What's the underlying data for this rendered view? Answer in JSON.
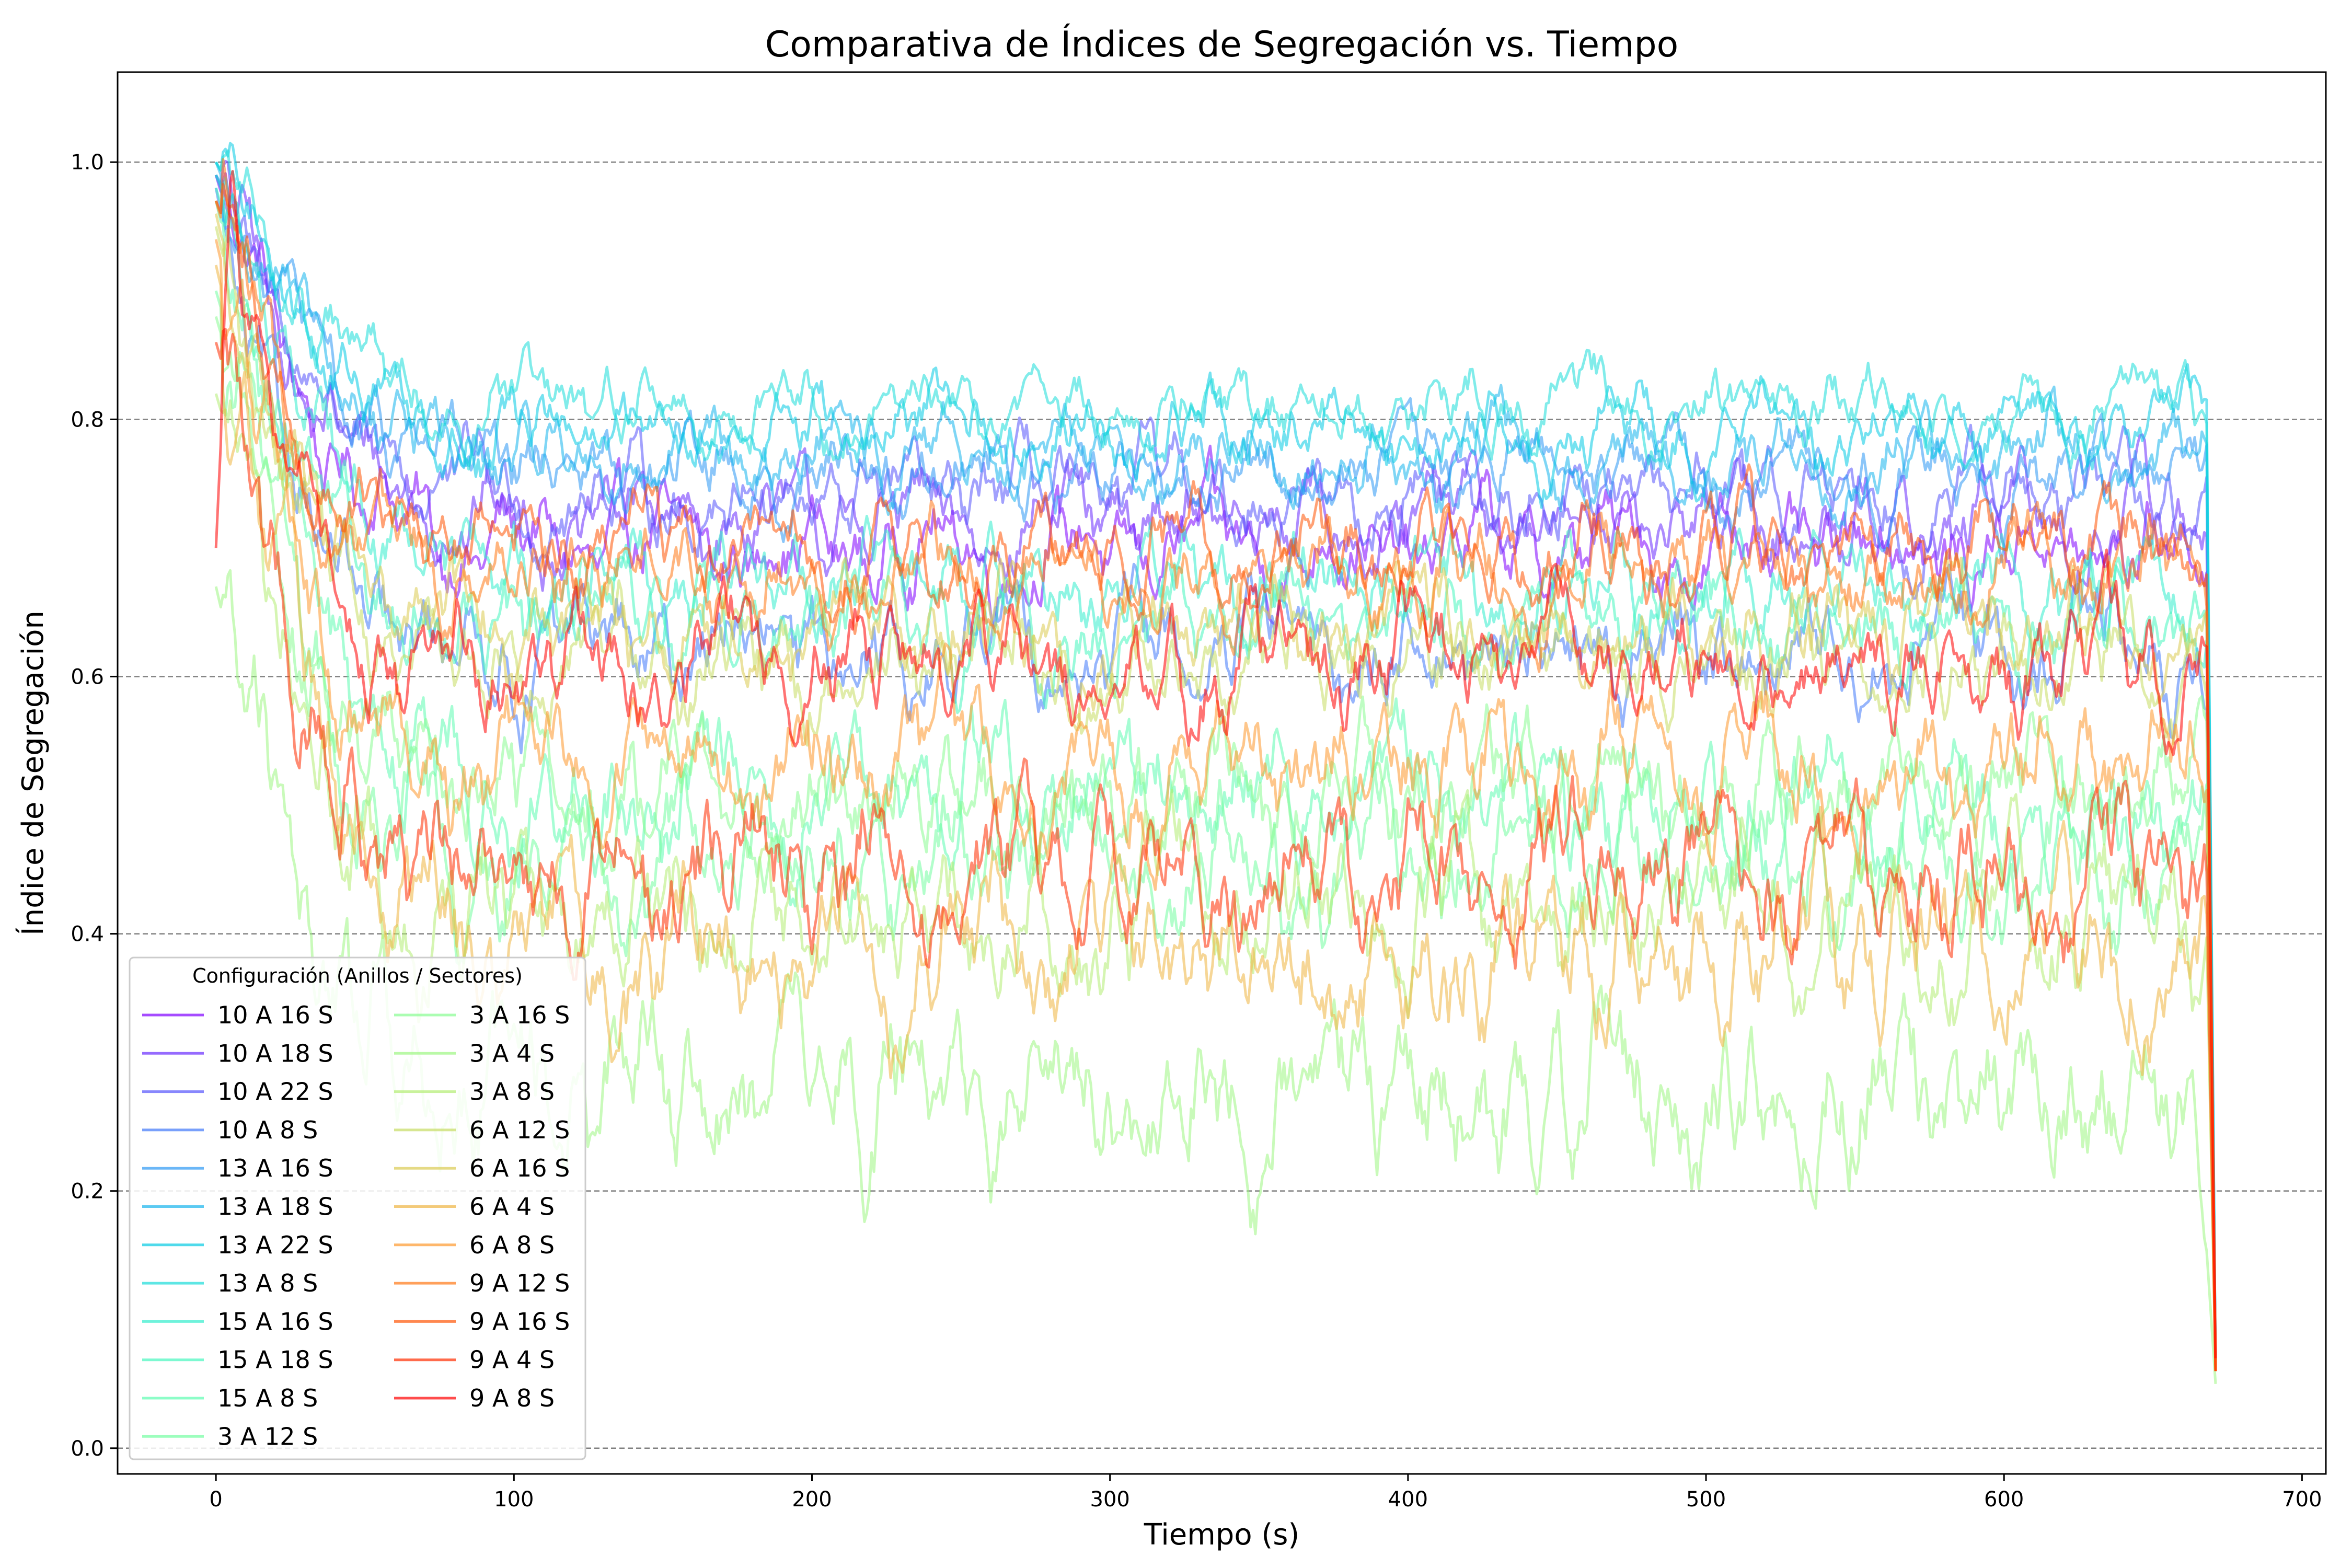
{
  "chart_data": {
    "type": "line",
    "title": "Comparativa de Índices de Segregación vs. Tiempo",
    "xlabel": "Tiempo (s)",
    "ylabel": "Índice de Segregación",
    "xlim": [
      -33,
      708
    ],
    "ylim": [
      -0.02,
      1.07
    ],
    "xticks": [
      0,
      100,
      200,
      300,
      400,
      500,
      600,
      700
    ],
    "yticks": [
      0.0,
      0.2,
      0.4,
      0.6,
      0.8,
      1.0
    ],
    "x_tick_labels": [
      "0",
      "100",
      "200",
      "300",
      "400",
      "500",
      "600",
      "700"
    ],
    "y_tick_labels": [
      "0.0",
      "0.2",
      "0.4",
      "0.6",
      "0.8",
      "1.0"
    ],
    "grid": "horizontal dashed",
    "legend_title": "Configuración (Anillos / Sectores)",
    "legend_position": "lower-left",
    "x": [
      0,
      5,
      10,
      20,
      30,
      40,
      50,
      60,
      80,
      100,
      150,
      200,
      250,
      300,
      350,
      400,
      450,
      500,
      550,
      600,
      650,
      665,
      668,
      671
    ],
    "series": [
      {
        "name": "10 A 16 S",
        "color": "#8000ff",
        "values": [
          0.99,
          0.95,
          0.93,
          0.87,
          0.82,
          0.77,
          0.74,
          0.73,
          0.71,
          0.7,
          0.7,
          0.7,
          0.7,
          0.7,
          0.7,
          0.7,
          0.7,
          0.7,
          0.7,
          0.7,
          0.7,
          0.7,
          0.7,
          0.06
        ]
      },
      {
        "name": "10 A 18 S",
        "color": "#6a2cfe",
        "values": [
          0.99,
          0.96,
          0.94,
          0.88,
          0.83,
          0.79,
          0.76,
          0.75,
          0.73,
          0.72,
          0.72,
          0.72,
          0.72,
          0.72,
          0.72,
          0.72,
          0.72,
          0.72,
          0.72,
          0.72,
          0.72,
          0.72,
          0.72,
          0.06
        ]
      },
      {
        "name": "10 A 22 S",
        "color": "#5654fc",
        "values": [
          0.99,
          0.96,
          0.94,
          0.89,
          0.84,
          0.8,
          0.77,
          0.76,
          0.75,
          0.74,
          0.74,
          0.74,
          0.74,
          0.74,
          0.74,
          0.74,
          0.74,
          0.74,
          0.74,
          0.74,
          0.74,
          0.74,
          0.74,
          0.06
        ]
      },
      {
        "name": "10 A 8 S",
        "color": "#4078f9",
        "values": [
          0.98,
          0.92,
          0.88,
          0.8,
          0.73,
          0.68,
          0.65,
          0.63,
          0.62,
          0.62,
          0.62,
          0.62,
          0.62,
          0.62,
          0.62,
          0.62,
          0.62,
          0.62,
          0.62,
          0.62,
          0.62,
          0.62,
          0.62,
          0.06
        ]
      },
      {
        "name": "13 A 16 S",
        "color": "#2c98f4",
        "values": [
          0.99,
          0.97,
          0.95,
          0.9,
          0.86,
          0.82,
          0.8,
          0.78,
          0.77,
          0.76,
          0.76,
          0.76,
          0.76,
          0.76,
          0.76,
          0.76,
          0.76,
          0.76,
          0.76,
          0.76,
          0.76,
          0.76,
          0.76,
          0.06
        ]
      },
      {
        "name": "13 A 18 S",
        "color": "#16b4ec",
        "values": [
          1.0,
          0.97,
          0.95,
          0.91,
          0.87,
          0.83,
          0.81,
          0.79,
          0.78,
          0.77,
          0.77,
          0.77,
          0.77,
          0.77,
          0.77,
          0.77,
          0.77,
          0.77,
          0.77,
          0.77,
          0.77,
          0.77,
          0.77,
          0.06
        ]
      },
      {
        "name": "13 A 22 S",
        "color": "#04cbe3",
        "values": [
          1.0,
          0.98,
          0.96,
          0.92,
          0.88,
          0.85,
          0.82,
          0.81,
          0.8,
          0.79,
          0.79,
          0.79,
          0.79,
          0.79,
          0.79,
          0.79,
          0.79,
          0.79,
          0.79,
          0.79,
          0.79,
          0.79,
          0.79,
          0.06
        ]
      },
      {
        "name": "13 A 8 S",
        "color": "#1adcd8",
        "values": [
          1.0,
          0.98,
          0.97,
          0.93,
          0.89,
          0.86,
          0.84,
          0.82,
          0.81,
          0.81,
          0.81,
          0.81,
          0.81,
          0.81,
          0.81,
          0.81,
          0.81,
          0.81,
          0.81,
          0.81,
          0.81,
          0.81,
          0.81,
          0.06
        ]
      },
      {
        "name": "15 A 16 S",
        "color": "#32eccc",
        "values": [
          0.99,
          0.96,
          0.94,
          0.88,
          0.82,
          0.77,
          0.73,
          0.7,
          0.68,
          0.67,
          0.67,
          0.67,
          0.67,
          0.67,
          0.67,
          0.67,
          0.67,
          0.67,
          0.67,
          0.67,
          0.67,
          0.67,
          0.67,
          0.06
        ]
      },
      {
        "name": "15 A 18 S",
        "color": "#46f6be",
        "values": [
          0.98,
          0.94,
          0.91,
          0.84,
          0.77,
          0.72,
          0.68,
          0.66,
          0.64,
          0.64,
          0.64,
          0.64,
          0.64,
          0.64,
          0.64,
          0.64,
          0.64,
          0.64,
          0.64,
          0.64,
          0.64,
          0.64,
          0.64,
          0.06
        ]
      },
      {
        "name": "15 A 8 S",
        "color": "#5cfcb0",
        "values": [
          0.97,
          0.92,
          0.88,
          0.78,
          0.69,
          0.61,
          0.56,
          0.53,
          0.51,
          0.5,
          0.5,
          0.5,
          0.5,
          0.5,
          0.5,
          0.5,
          0.5,
          0.5,
          0.5,
          0.5,
          0.5,
          0.5,
          0.5,
          0.06
        ]
      },
      {
        "name": "3 A 12 S",
        "color": "#72fea1",
        "values": [
          0.9,
          0.86,
          0.82,
          0.72,
          0.62,
          0.55,
          0.5,
          0.48,
          0.46,
          0.45,
          0.45,
          0.45,
          0.45,
          0.45,
          0.45,
          0.45,
          0.45,
          0.45,
          0.45,
          0.45,
          0.45,
          0.45,
          0.45,
          0.06
        ]
      },
      {
        "name": "3 A 16 S",
        "color": "#88fc91",
        "values": [
          0.88,
          0.84,
          0.8,
          0.71,
          0.63,
          0.58,
          0.55,
          0.53,
          0.52,
          0.51,
          0.51,
          0.51,
          0.51,
          0.51,
          0.51,
          0.51,
          0.51,
          0.51,
          0.51,
          0.51,
          0.51,
          0.51,
          0.51,
          0.06
        ]
      },
      {
        "name": "3 A 4 S",
        "color": "#9cf682",
        "values": [
          0.67,
          0.62,
          0.58,
          0.5,
          0.42,
          0.36,
          0.33,
          0.3,
          0.28,
          0.27,
          0.27,
          0.27,
          0.27,
          0.27,
          0.27,
          0.27,
          0.27,
          0.27,
          0.27,
          0.27,
          0.27,
          0.27,
          0.27,
          0.05
        ]
      },
      {
        "name": "3 A 8 S",
        "color": "#b2ec72",
        "values": [
          0.82,
          0.78,
          0.74,
          0.65,
          0.56,
          0.49,
          0.45,
          0.43,
          0.42,
          0.41,
          0.41,
          0.41,
          0.41,
          0.41,
          0.41,
          0.41,
          0.41,
          0.41,
          0.41,
          0.41,
          0.41,
          0.41,
          0.41,
          0.06
        ]
      },
      {
        "name": "6 A 12 S",
        "color": "#c6dc62",
        "values": [
          0.95,
          0.9,
          0.86,
          0.78,
          0.72,
          0.67,
          0.64,
          0.62,
          0.61,
          0.61,
          0.61,
          0.61,
          0.61,
          0.61,
          0.61,
          0.61,
          0.61,
          0.61,
          0.61,
          0.61,
          0.61,
          0.61,
          0.61,
          0.06
        ]
      },
      {
        "name": "6 A 16 S",
        "color": "#dacb51",
        "values": [
          0.96,
          0.91,
          0.88,
          0.8,
          0.74,
          0.7,
          0.67,
          0.65,
          0.64,
          0.63,
          0.63,
          0.63,
          0.63,
          0.63,
          0.63,
          0.63,
          0.63,
          0.63,
          0.63,
          0.63,
          0.63,
          0.63,
          0.63,
          0.06
        ]
      },
      {
        "name": "6 A 4 S",
        "color": "#eeb440",
        "values": [
          0.92,
          0.87,
          0.82,
          0.71,
          0.6,
          0.52,
          0.46,
          0.43,
          0.4,
          0.39,
          0.39,
          0.39,
          0.39,
          0.39,
          0.39,
          0.39,
          0.39,
          0.39,
          0.39,
          0.39,
          0.39,
          0.39,
          0.39,
          0.06
        ]
      },
      {
        "name": "6 A 8 S",
        "color": "#fe982c",
        "values": [
          0.94,
          0.89,
          0.85,
          0.75,
          0.66,
          0.6,
          0.56,
          0.54,
          0.53,
          0.53,
          0.53,
          0.53,
          0.53,
          0.53,
          0.53,
          0.53,
          0.53,
          0.53,
          0.53,
          0.53,
          0.53,
          0.53,
          0.53,
          0.06
        ]
      },
      {
        "name": "9 A 12 S",
        "color": "#ff7816",
        "values": [
          0.97,
          0.93,
          0.9,
          0.83,
          0.77,
          0.73,
          0.7,
          0.69,
          0.68,
          0.68,
          0.68,
          0.68,
          0.68,
          0.68,
          0.68,
          0.68,
          0.68,
          0.68,
          0.68,
          0.68,
          0.68,
          0.68,
          0.68,
          0.06
        ]
      },
      {
        "name": "9 A 16 S",
        "color": "#ff5404",
        "values": [
          0.97,
          0.94,
          0.91,
          0.84,
          0.78,
          0.74,
          0.72,
          0.71,
          0.7,
          0.7,
          0.7,
          0.7,
          0.7,
          0.7,
          0.7,
          0.7,
          0.7,
          0.7,
          0.7,
          0.7,
          0.7,
          0.7,
          0.7,
          0.06
        ]
      },
      {
        "name": "9 A 4 S",
        "color": "#ff2c00",
        "values": [
          0.86,
          0.82,
          0.78,
          0.68,
          0.58,
          0.52,
          0.48,
          0.46,
          0.45,
          0.45,
          0.45,
          0.45,
          0.45,
          0.45,
          0.45,
          0.45,
          0.45,
          0.45,
          0.45,
          0.45,
          0.45,
          0.45,
          0.45,
          0.06
        ]
      },
      {
        "name": "9 A 8 S",
        "color": "#ff0000",
        "values": [
          0.7,
          0.95,
          0.9,
          0.8,
          0.71,
          0.66,
          0.63,
          0.62,
          0.61,
          0.61,
          0.61,
          0.61,
          0.61,
          0.61,
          0.61,
          0.61,
          0.61,
          0.61,
          0.61,
          0.61,
          0.61,
          0.61,
          0.61,
          0.07
        ]
      }
    ]
  }
}
